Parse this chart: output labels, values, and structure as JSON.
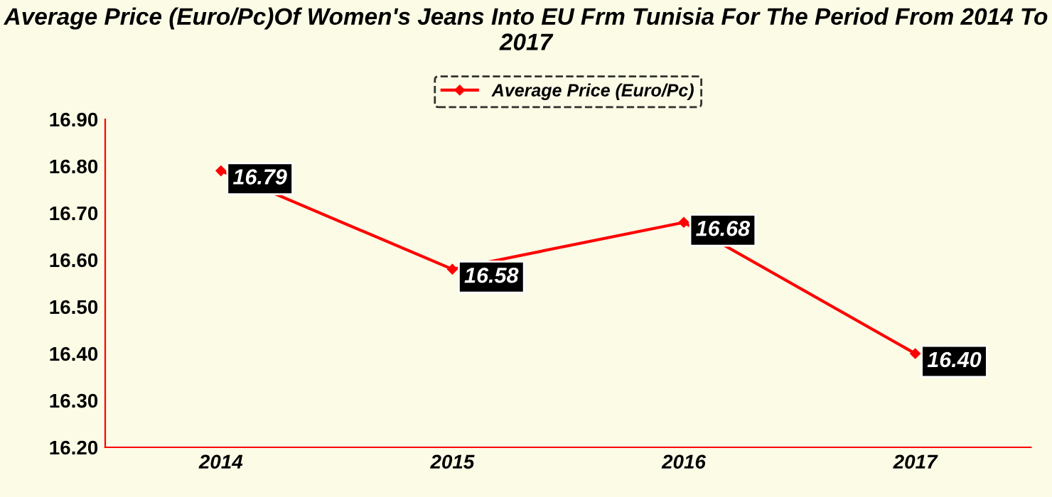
{
  "chart_data": {
    "type": "line",
    "title": "Average Price (Euro/Pc)Of Women's Jeans Into EU Frm Tunisia For The Period From 2014 To 2017",
    "categories": [
      "2014",
      "2015",
      "2016",
      "2017"
    ],
    "series": [
      {
        "name": "Average Price (Euro/Pc)",
        "color": "#ff0000",
        "values": [
          16.79,
          16.58,
          16.68,
          16.4
        ],
        "value_labels": [
          "16.79",
          "16.58",
          "16.68",
          "16.40"
        ]
      }
    ],
    "ylim": [
      16.2,
      16.9
    ],
    "yticks": [
      {
        "value": 16.2,
        "label": "16.20"
      },
      {
        "value": 16.3,
        "label": "16.30"
      },
      {
        "value": 16.4,
        "label": "16.40"
      },
      {
        "value": 16.5,
        "label": "16.50"
      },
      {
        "value": 16.6,
        "label": "16.60"
      },
      {
        "value": 16.7,
        "label": "16.70"
      },
      {
        "value": 16.8,
        "label": "16.80"
      },
      {
        "value": 16.9,
        "label": "16.90"
      }
    ],
    "legend": "top",
    "marker": "diamond",
    "line_style": "solid",
    "grid": false
  }
}
